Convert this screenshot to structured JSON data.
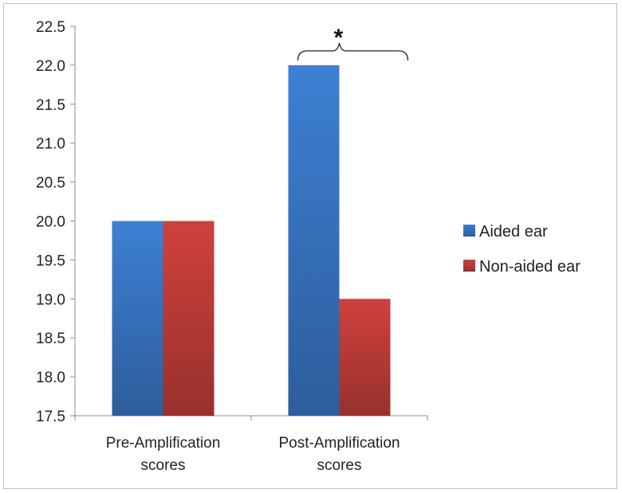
{
  "chart_data": {
    "type": "bar",
    "categories": [
      [
        "Pre-Amplification",
        "scores"
      ],
      [
        "Post-Amplification",
        "scores"
      ]
    ],
    "series": [
      {
        "name": "Aided ear",
        "values": [
          20.0,
          22.0
        ],
        "color": "#3a78c6"
      },
      {
        "name": "Non-aided ear",
        "values": [
          20.0,
          19.0
        ],
        "color": "#c23a36"
      }
    ],
    "ylim": [
      17.5,
      22.5
    ],
    "yticks": [
      "17.5",
      "18.0",
      "18.5",
      "19.0",
      "19.5",
      "20.0",
      "20.5",
      "21.0",
      "21.5",
      "22.0",
      "22.5"
    ],
    "grid": false,
    "legend": "right",
    "annotation": {
      "text": "*",
      "category_index": 1
    }
  }
}
